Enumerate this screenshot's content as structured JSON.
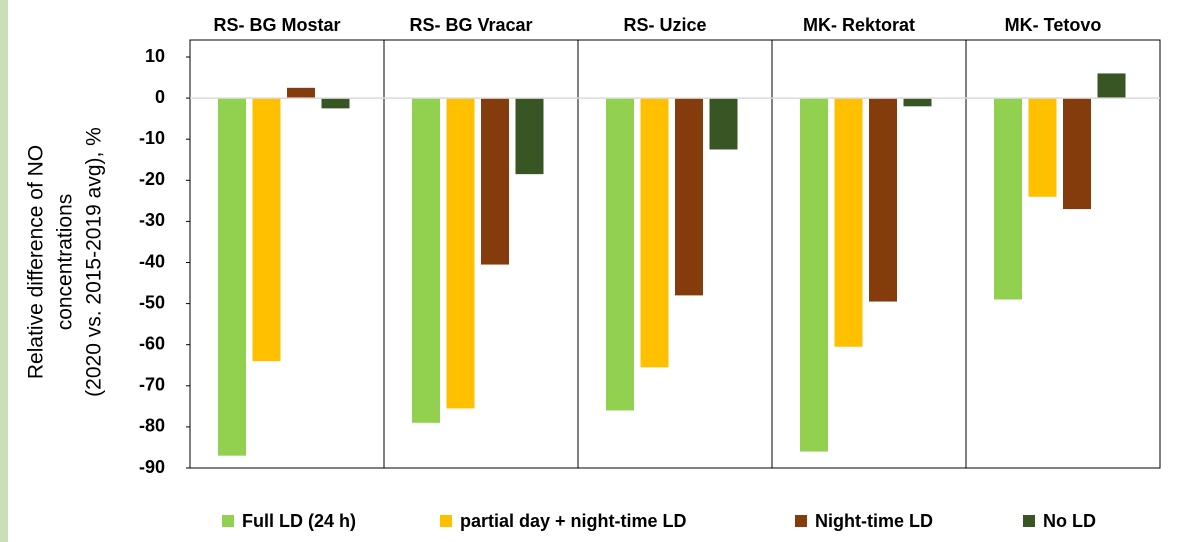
{
  "chart_data": {
    "type": "bar",
    "y_label": [
      "Relative difference of NO",
      "concentrations",
      "(2020 vs. 2015-2019 avg), %"
    ],
    "categories": [
      "RS- BG Mostar",
      "RS- BG Vracar",
      "RS- Uzice",
      "MK- Rektorat",
      "MK- Tetovo"
    ],
    "series": [
      {
        "name": "Full LD (24 h)",
        "color": "#92d050",
        "values": [
          -87,
          -79,
          -76,
          -86,
          -49
        ]
      },
      {
        "name": "partial day + night-time LD",
        "color": "#ffc000",
        "values": [
          -64,
          -75.5,
          -65.5,
          -60.5,
          -24
        ]
      },
      {
        "name": "Night-time LD",
        "color": "#843c0c",
        "values": [
          2.5,
          -40.5,
          -48,
          -49.5,
          -27
        ]
      },
      {
        "name": "No LD",
        "color": "#375623",
        "values": [
          -2.5,
          -18.5,
          -12.5,
          -2,
          6
        ]
      }
    ],
    "ylim": [
      -90,
      10
    ],
    "yticks": [
      10,
      0,
      -10,
      -20,
      -30,
      -40,
      -50,
      -60,
      -70,
      -80,
      -90
    ],
    "legend": "bottom"
  }
}
